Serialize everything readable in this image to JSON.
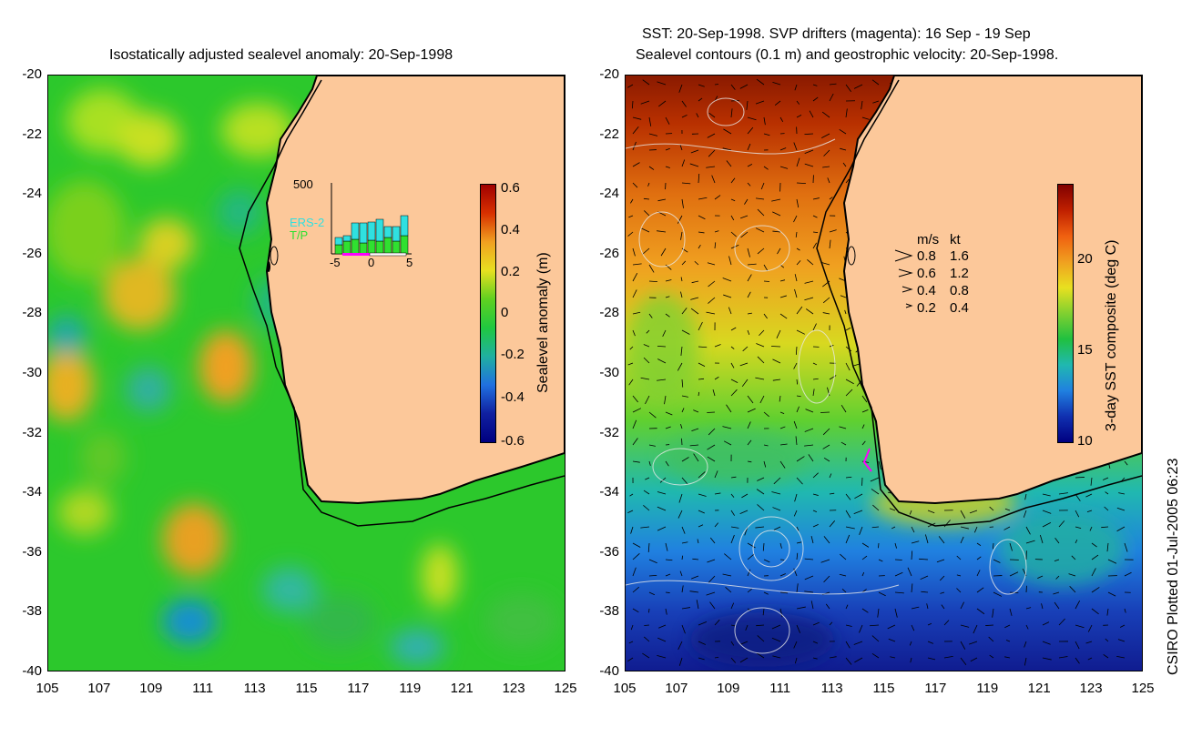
{
  "left_panel": {
    "title": "Isostatically adjusted sealevel anomaly: 20-Sep-1998",
    "colorbar": {
      "label": "Sealevel anomaly (m)",
      "ticks": [
        "0.6",
        "0.4",
        "0.2",
        "0",
        "-0.2",
        "-0.4",
        "-0.6"
      ],
      "range": [
        -0.6,
        0.6
      ]
    },
    "inset": {
      "y_label": "500",
      "x_ticks": [
        "-5",
        "0",
        "5"
      ],
      "legend": [
        "ERS-2",
        "T/P"
      ],
      "legend_colors": [
        "#30e0e0",
        "#30e030"
      ]
    }
  },
  "right_panel": {
    "title_line1": "SST: 20-Sep-1998. SVP drifters (magenta): 16 Sep - 19 Sep",
    "title_line2": "Sealevel contours (0.1 m) and geostrophic velocity: 20-Sep-1998.",
    "colorbar": {
      "label": "3-day SST composite (deg C)",
      "ticks": [
        "20",
        "15",
        "10"
      ],
      "range": [
        10,
        23.5
      ]
    },
    "velocity_legend": {
      "headers": [
        "m/s",
        "kt"
      ],
      "rows": [
        [
          "0.8",
          "1.6"
        ],
        [
          "0.6",
          "1.2"
        ],
        [
          "0.4",
          "0.8"
        ],
        [
          "0.2",
          "0.4"
        ]
      ]
    }
  },
  "axes": {
    "lat_ticks": [
      "-20",
      "-22",
      "-24",
      "-26",
      "-28",
      "-30",
      "-32",
      "-34",
      "-36",
      "-38",
      "-40"
    ],
    "lon_ticks": [
      "105",
      "107",
      "109",
      "111",
      "113",
      "115",
      "117",
      "119",
      "121",
      "123",
      "125"
    ]
  },
  "footer": "CSIRO Plotted 01-Jul-2005 06:23",
  "colors": {
    "land": "#fcc89a",
    "coast": "#000000"
  }
}
